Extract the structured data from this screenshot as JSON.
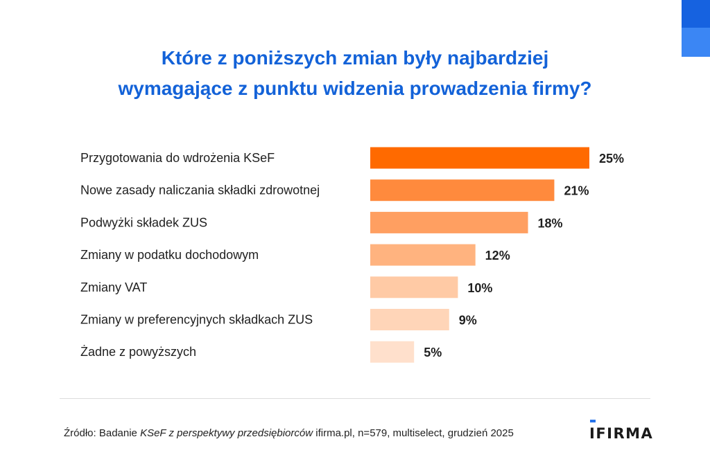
{
  "brand": {
    "corner_top_color": "#1662e0",
    "corner_bottom_color": "#3b86f4",
    "logo_text": "IFIRMA",
    "logo_accent_color": "#2673ea"
  },
  "title": {
    "line1": "Które z poniższych zmian były najbardziej",
    "line2": "wymagające z punktu widzenia prowadzenia firmy?"
  },
  "chart_data": {
    "type": "bar",
    "orientation": "horizontal",
    "title": "Które z poniższych zmian były najbardziej wymagające z punktu widzenia prowadzenia firmy?",
    "xlabel": "",
    "ylabel": "",
    "unit": "%",
    "xlim": [
      0,
      25
    ],
    "grid": false,
    "categories": [
      "Przygotowania do wdrożenia KSeF",
      "Nowe zasady naliczania składki zdrowotnej",
      "Podwyżki składek ZUS",
      "Zmiany w podatku dochodowym",
      "Zmiany VAT",
      "Zmiany w preferencyjnych składkach ZUS",
      "Żadne z powyższych"
    ],
    "values": [
      25,
      21,
      18,
      12,
      10,
      9,
      5
    ],
    "value_labels": [
      "25%",
      "21%",
      "18%",
      "12%",
      "10%",
      "9%",
      "5%"
    ],
    "colors": [
      "#ff6a00",
      "#ff8a3d",
      "#ff9f61",
      "#ffb37f",
      "#ffcaa5",
      "#ffd5b8",
      "#ffe0cc"
    ]
  },
  "footer": {
    "source_prefix": "Źródło: Badanie ",
    "source_italic": "KSeF z perspektywy przedsiębiorców",
    "source_suffix": " ifirma.pl, n=579, multiselect, grudzień 2025"
  }
}
